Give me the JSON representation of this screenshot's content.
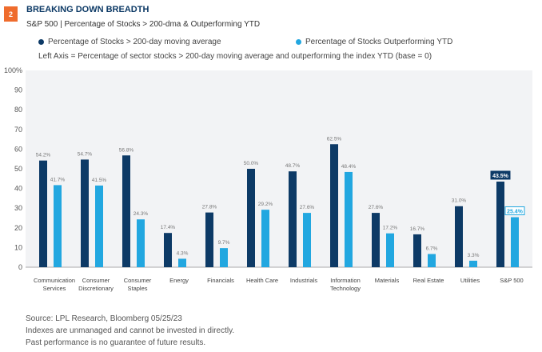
{
  "figure_number": "2",
  "chart_data": {
    "type": "bar",
    "title": "BREAKING DOWN BREADTH",
    "subtitle": "S&P 500 | Percentage of Stocks > 200-dma & Outperforming YTD",
    "note": "Left Axis = Percentage of sector stocks > 200-day moving average and outperforming the index YTD (base = 0)",
    "categories": [
      [
        "Communication",
        "Services"
      ],
      [
        "Consumer",
        "Discretionary"
      ],
      [
        "Consumer",
        "Staples"
      ],
      [
        "Energy"
      ],
      [
        "Financials"
      ],
      [
        "Health Care"
      ],
      [
        "Industrials"
      ],
      [
        "Information",
        "Technology"
      ],
      [
        "Materials"
      ],
      [
        "Real Estate"
      ],
      [
        "Utilities"
      ],
      [
        "S&P 500"
      ]
    ],
    "series": [
      {
        "name": "Percentage of Stocks > 200-day moving average",
        "color": "#0d3a66",
        "values": [
          54.2,
          54.7,
          56.8,
          17.4,
          27.8,
          50.0,
          48.7,
          62.5,
          27.6,
          16.7,
          31.0,
          43.5
        ]
      },
      {
        "name": "Percentage of Stocks Outperforming YTD",
        "color": "#22a7e0",
        "values": [
          41.7,
          41.5,
          24.3,
          4.3,
          9.7,
          29.2,
          27.6,
          48.4,
          17.2,
          6.7,
          3.3,
          25.4
        ]
      }
    ],
    "ylim": [
      0,
      100
    ],
    "yticks": [
      "0",
      "10",
      "20",
      "30",
      "40",
      "50",
      "60",
      "70",
      "80",
      "90",
      "100%"
    ],
    "highlight_category": "S&P 500",
    "grid": false,
    "legend": "top"
  },
  "footer": {
    "source": "Source: LPL Research, Bloomberg  05/25/23",
    "line2": "Indexes are unmanaged and cannot be invested in directly.",
    "line3": "Past performance is no guarantee of future results."
  }
}
